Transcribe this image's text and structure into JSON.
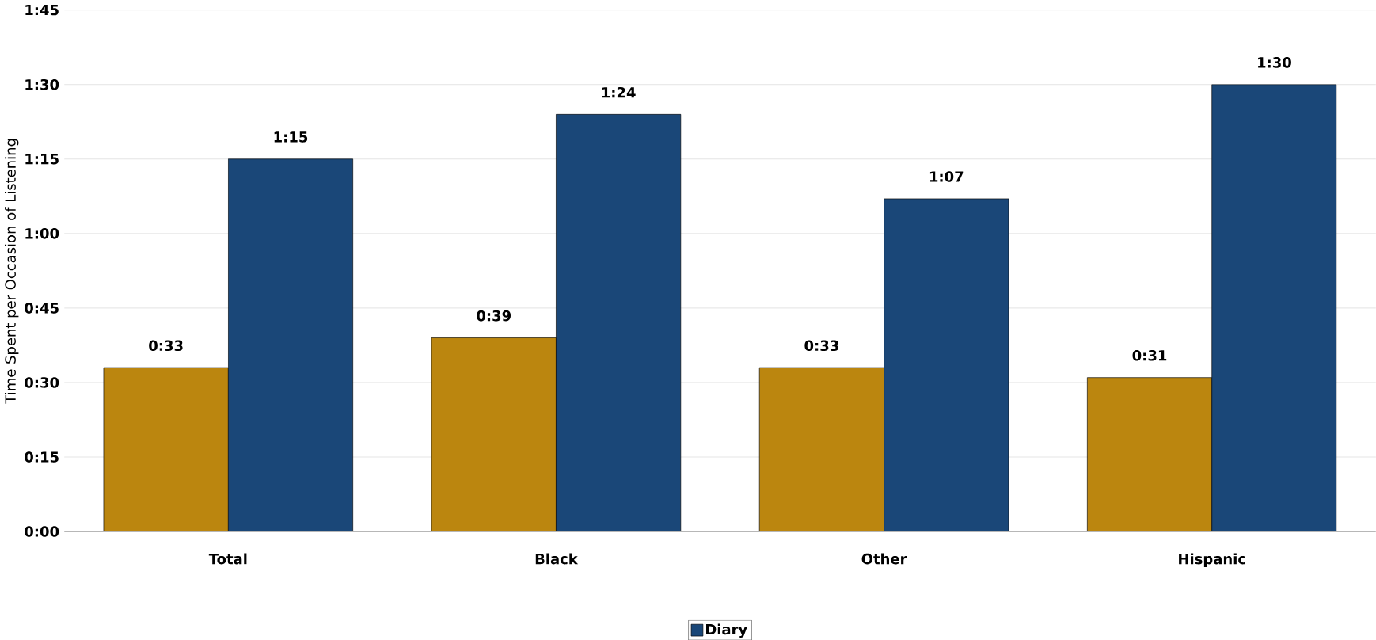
{
  "chart_data": {
    "type": "bar",
    "ylabel": "Time Spent per Occasion of Listening",
    "categories": [
      "Total",
      "Black",
      "Other",
      "Hispanic"
    ],
    "series": [
      {
        "color": "#bb860f",
        "values": [
          33,
          39,
          33,
          31
        ],
        "value_labels": [
          "0:33",
          "0:39",
          "0:33",
          "0:31"
        ]
      },
      {
        "name": "Diary",
        "color": "#1a4778",
        "values": [
          75,
          84,
          67,
          90
        ],
        "value_labels": [
          "1:15",
          "1:24",
          "1:07",
          "1:30"
        ]
      }
    ],
    "ylim": [
      0,
      105
    ],
    "yticks": [
      {
        "value": 0,
        "label": "0:00"
      },
      {
        "value": 15,
        "label": "0:15"
      },
      {
        "value": 30,
        "label": "0:30"
      },
      {
        "value": 45,
        "label": "0:45"
      },
      {
        "value": 60,
        "label": "1:00"
      },
      {
        "value": 75,
        "label": "1:15"
      },
      {
        "value": 90,
        "label": "1:30"
      },
      {
        "value": 105,
        "label": "1:45"
      }
    ],
    "grid": "y",
    "legend": "bottom"
  }
}
